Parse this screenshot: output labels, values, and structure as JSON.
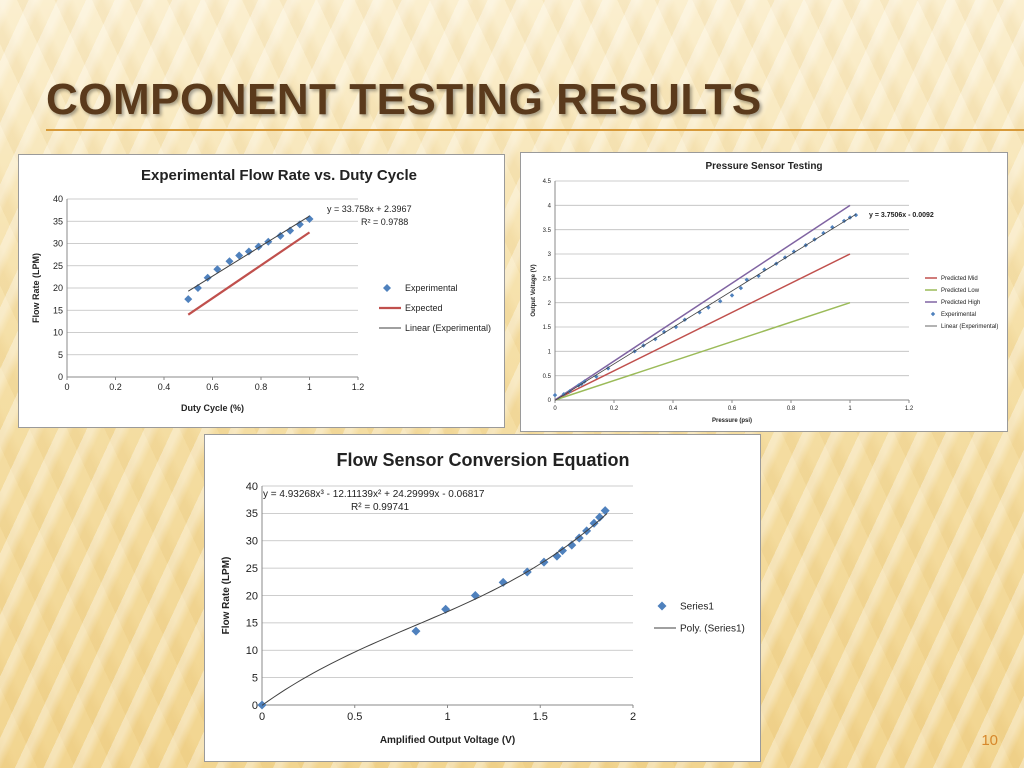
{
  "slide": {
    "title": "COMPONENT TESTING RESULTS",
    "page_number": "10",
    "colors": {
      "title": "#5a3a1c",
      "rule": "#d79a3a",
      "page_number": "#d7882c"
    }
  },
  "chart_data": [
    {
      "type": "scatter",
      "title": "Experimental Flow Rate vs. Duty Cycle",
      "xlabel": "Duty Cycle (%)",
      "ylabel": "Flow Rate (LPM)",
      "xlim": [
        0,
        1.2
      ],
      "ylim": [
        0,
        40
      ],
      "xticks": [
        0,
        0.2,
        0.4,
        0.6,
        0.8,
        1,
        1.2
      ],
      "yticks": [
        0,
        5,
        10,
        15,
        20,
        25,
        30,
        35,
        40
      ],
      "grid": "horizontal",
      "legend_position": "right",
      "annotation": [
        "y = 33.758x + 2.3967",
        "R² = 0.9788"
      ],
      "series": [
        {
          "name": "Experimental",
          "kind": "marker",
          "color": "#4f81bd",
          "points": [
            [
              0.5,
              17.5
            ],
            [
              0.54,
              20
            ],
            [
              0.58,
              22.3
            ],
            [
              0.62,
              24.2
            ],
            [
              0.67,
              26
            ],
            [
              0.71,
              27.3
            ],
            [
              0.75,
              28.2
            ],
            [
              0.79,
              29.3
            ],
            [
              0.83,
              30.4
            ],
            [
              0.88,
              31.7
            ],
            [
              0.92,
              32.9
            ],
            [
              0.96,
              34.3
            ],
            [
              1.0,
              35.5
            ]
          ]
        },
        {
          "name": "Expected",
          "kind": "line",
          "color": "#c0504d",
          "width": 2.2,
          "points": [
            [
              0.5,
              14
            ],
            [
              1.0,
              32.5
            ]
          ]
        },
        {
          "name": "Linear (Experimental)",
          "kind": "line",
          "color": "#404040",
          "width": 1,
          "points": [
            [
              0.5,
              19.28
            ],
            [
              1.0,
              36.16
            ]
          ]
        }
      ]
    },
    {
      "type": "scatter",
      "title": "Pressure Sensor Testing",
      "xlabel": "Pressure (psi)",
      "ylabel": "Output Voltage (V)",
      "xlim": [
        0,
        1.2
      ],
      "ylim": [
        0,
        4.5
      ],
      "xticks": [
        0,
        0.2,
        0.4,
        0.6,
        0.8,
        1,
        1.2
      ],
      "yticks": [
        0,
        0.5,
        1,
        1.5,
        2,
        2.5,
        3,
        3.5,
        4,
        4.5
      ],
      "grid": "horizontal",
      "legend_position": "right",
      "annotation": [
        "y = 3.7506x - 0.0092"
      ],
      "series": [
        {
          "name": "Predicted Mid",
          "kind": "line",
          "color": "#c0504d",
          "width": 1.5,
          "points": [
            [
              0,
              0
            ],
            [
              1,
              3
            ]
          ]
        },
        {
          "name": "Predicted Low",
          "kind": "line",
          "color": "#9bbb59",
          "width": 1.5,
          "points": [
            [
              0,
              0
            ],
            [
              1,
              2
            ]
          ]
        },
        {
          "name": "Predicted High",
          "kind": "line",
          "color": "#8064a2",
          "width": 1.5,
          "points": [
            [
              0,
              0
            ],
            [
              1,
              4
            ]
          ]
        },
        {
          "name": "Experimental",
          "kind": "marker",
          "color": "#4f81bd",
          "points": [
            [
              0,
              0.1
            ],
            [
              0.03,
              0.12
            ],
            [
              0.05,
              0.18
            ],
            [
              0.08,
              0.3
            ],
            [
              0.09,
              0.33
            ],
            [
              0.1,
              0.38
            ],
            [
              0.14,
              0.48
            ],
            [
              0.18,
              0.65
            ],
            [
              0.27,
              1.0
            ],
            [
              0.3,
              1.12
            ],
            [
              0.34,
              1.25
            ],
            [
              0.37,
              1.4
            ],
            [
              0.41,
              1.5
            ],
            [
              0.44,
              1.65
            ],
            [
              0.49,
              1.8
            ],
            [
              0.52,
              1.9
            ],
            [
              0.56,
              2.03
            ],
            [
              0.6,
              2.15
            ],
            [
              0.63,
              2.3
            ],
            [
              0.65,
              2.47
            ],
            [
              0.69,
              2.55
            ],
            [
              0.71,
              2.68
            ],
            [
              0.75,
              2.8
            ],
            [
              0.78,
              2.93
            ],
            [
              0.81,
              3.05
            ],
            [
              0.85,
              3.18
            ],
            [
              0.88,
              3.3
            ],
            [
              0.91,
              3.43
            ],
            [
              0.94,
              3.55
            ],
            [
              0.98,
              3.68
            ],
            [
              1.0,
              3.75
            ],
            [
              1.02,
              3.8
            ]
          ]
        },
        {
          "name": "Linear (Experimental)",
          "kind": "line",
          "color": "#404040",
          "width": 0.8,
          "points": [
            [
              0,
              -0.0092
            ],
            [
              1.02,
              3.816
            ]
          ]
        }
      ]
    },
    {
      "type": "scatter",
      "title": "Flow Sensor Conversion Equation",
      "xlabel": "Amplified Output Voltage (V)",
      "ylabel": "Flow Rate (LPM)",
      "xlim": [
        0,
        2
      ],
      "ylim": [
        0,
        40
      ],
      "xticks": [
        0,
        0.5,
        1,
        1.5,
        2
      ],
      "yticks": [
        0,
        5,
        10,
        15,
        20,
        25,
        30,
        35,
        40
      ],
      "grid": "horizontal",
      "legend_position": "right",
      "annotation": [
        "y = 4.93268x³ - 12.11139x² + 24.29999x - 0.06817",
        "R² = 0.99741"
      ],
      "poly_coefficients": [
        4.93268,
        -12.11139,
        24.29999,
        -0.06817
      ],
      "series": [
        {
          "name": "Series1",
          "kind": "marker",
          "color": "#4f81bd",
          "points": [
            [
              0,
              0
            ],
            [
              0.83,
              13.5
            ],
            [
              0.99,
              17.5
            ],
            [
              1.15,
              20
            ],
            [
              1.3,
              22.4
            ],
            [
              1.43,
              24.3
            ],
            [
              1.52,
              26.1
            ],
            [
              1.59,
              27.2
            ],
            [
              1.62,
              28.2
            ],
            [
              1.67,
              29.2
            ],
            [
              1.71,
              30.5
            ],
            [
              1.75,
              31.8
            ],
            [
              1.79,
              33.2
            ],
            [
              1.82,
              34.3
            ],
            [
              1.85,
              35.5
            ]
          ]
        },
        {
          "name": "Poly. (Series1)",
          "kind": "curve",
          "color": "#404040",
          "width": 1,
          "x_range": [
            0,
            1.86
          ]
        }
      ]
    }
  ]
}
